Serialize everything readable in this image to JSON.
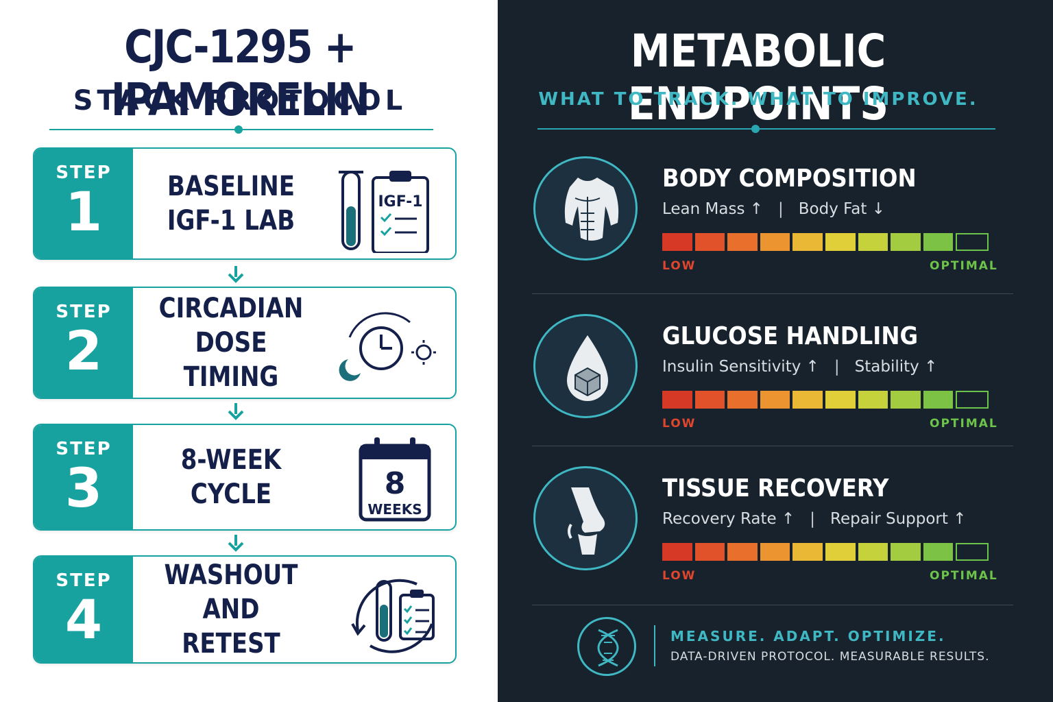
{
  "left": {
    "title": "CJC-1295 + IPAMORELIN",
    "subtitle": "STACK PROTOCOL",
    "step_label": "STEP",
    "steps": [
      {
        "number": "1",
        "line1": "BASELINE",
        "line2": "IGF-1 LAB",
        "icon": "test-tube-clipboard-icon",
        "icon_text": "IGF-1"
      },
      {
        "number": "2",
        "line1": "CIRCADIAN",
        "line2": "DOSE TIMING",
        "icon": "clock-moon-sun-icon"
      },
      {
        "number": "3",
        "line1": "8-WEEK",
        "line2": "CYCLE",
        "icon": "calendar-icon",
        "icon_text": "8",
        "icon_subtext": "WEEKS"
      },
      {
        "number": "4",
        "line1": "WASHOUT",
        "line2": "AND RETEST",
        "icon": "cycle-test-tube-clipboard-icon"
      }
    ],
    "accent": "#17a2a0",
    "navy": "#14204a"
  },
  "right": {
    "title": "METABOLIC ENDPOINTS",
    "subtitle": "WHAT TO TRACK. WHAT TO IMPROVE.",
    "metrics": [
      {
        "heading": "BODY COMPOSITION",
        "sub_a": "Lean Mass ↑",
        "sub_b": "Body Fat ↓",
        "icon": "torso-icon",
        "level": "9 of 10",
        "low": "LOW",
        "optimal": "OPTIMAL"
      },
      {
        "heading": "GLUCOSE HANDLING",
        "sub_a": "Insulin Sensitivity ↑",
        "sub_b": "Stability ↑",
        "icon": "drop-cube-icon",
        "level": "9 of 10",
        "low": "LOW",
        "optimal": "OPTIMAL"
      },
      {
        "heading": "TISSUE RECOVERY",
        "sub_a": "Recovery Rate ↑",
        "sub_b": "Repair Support ↑",
        "icon": "knee-joint-icon",
        "level": "9 of 10",
        "low": "LOW",
        "optimal": "OPTIMAL"
      }
    ],
    "footer": {
      "line1": "MEASURE. ADAPT. OPTIMIZE.",
      "line2": "DATA-DRIVEN PROTOCOL. MEASURABLE RESULTS.",
      "icon": "dna-icon"
    },
    "background": "#17222c",
    "accent": "#3fb8c3",
    "bar_colors": [
      "#d63a26",
      "#e2522a",
      "#e8702c",
      "#eb9430",
      "#eab834",
      "#e1cf3a",
      "#c6d23c",
      "#a3cc40",
      "#7cc244"
    ]
  }
}
